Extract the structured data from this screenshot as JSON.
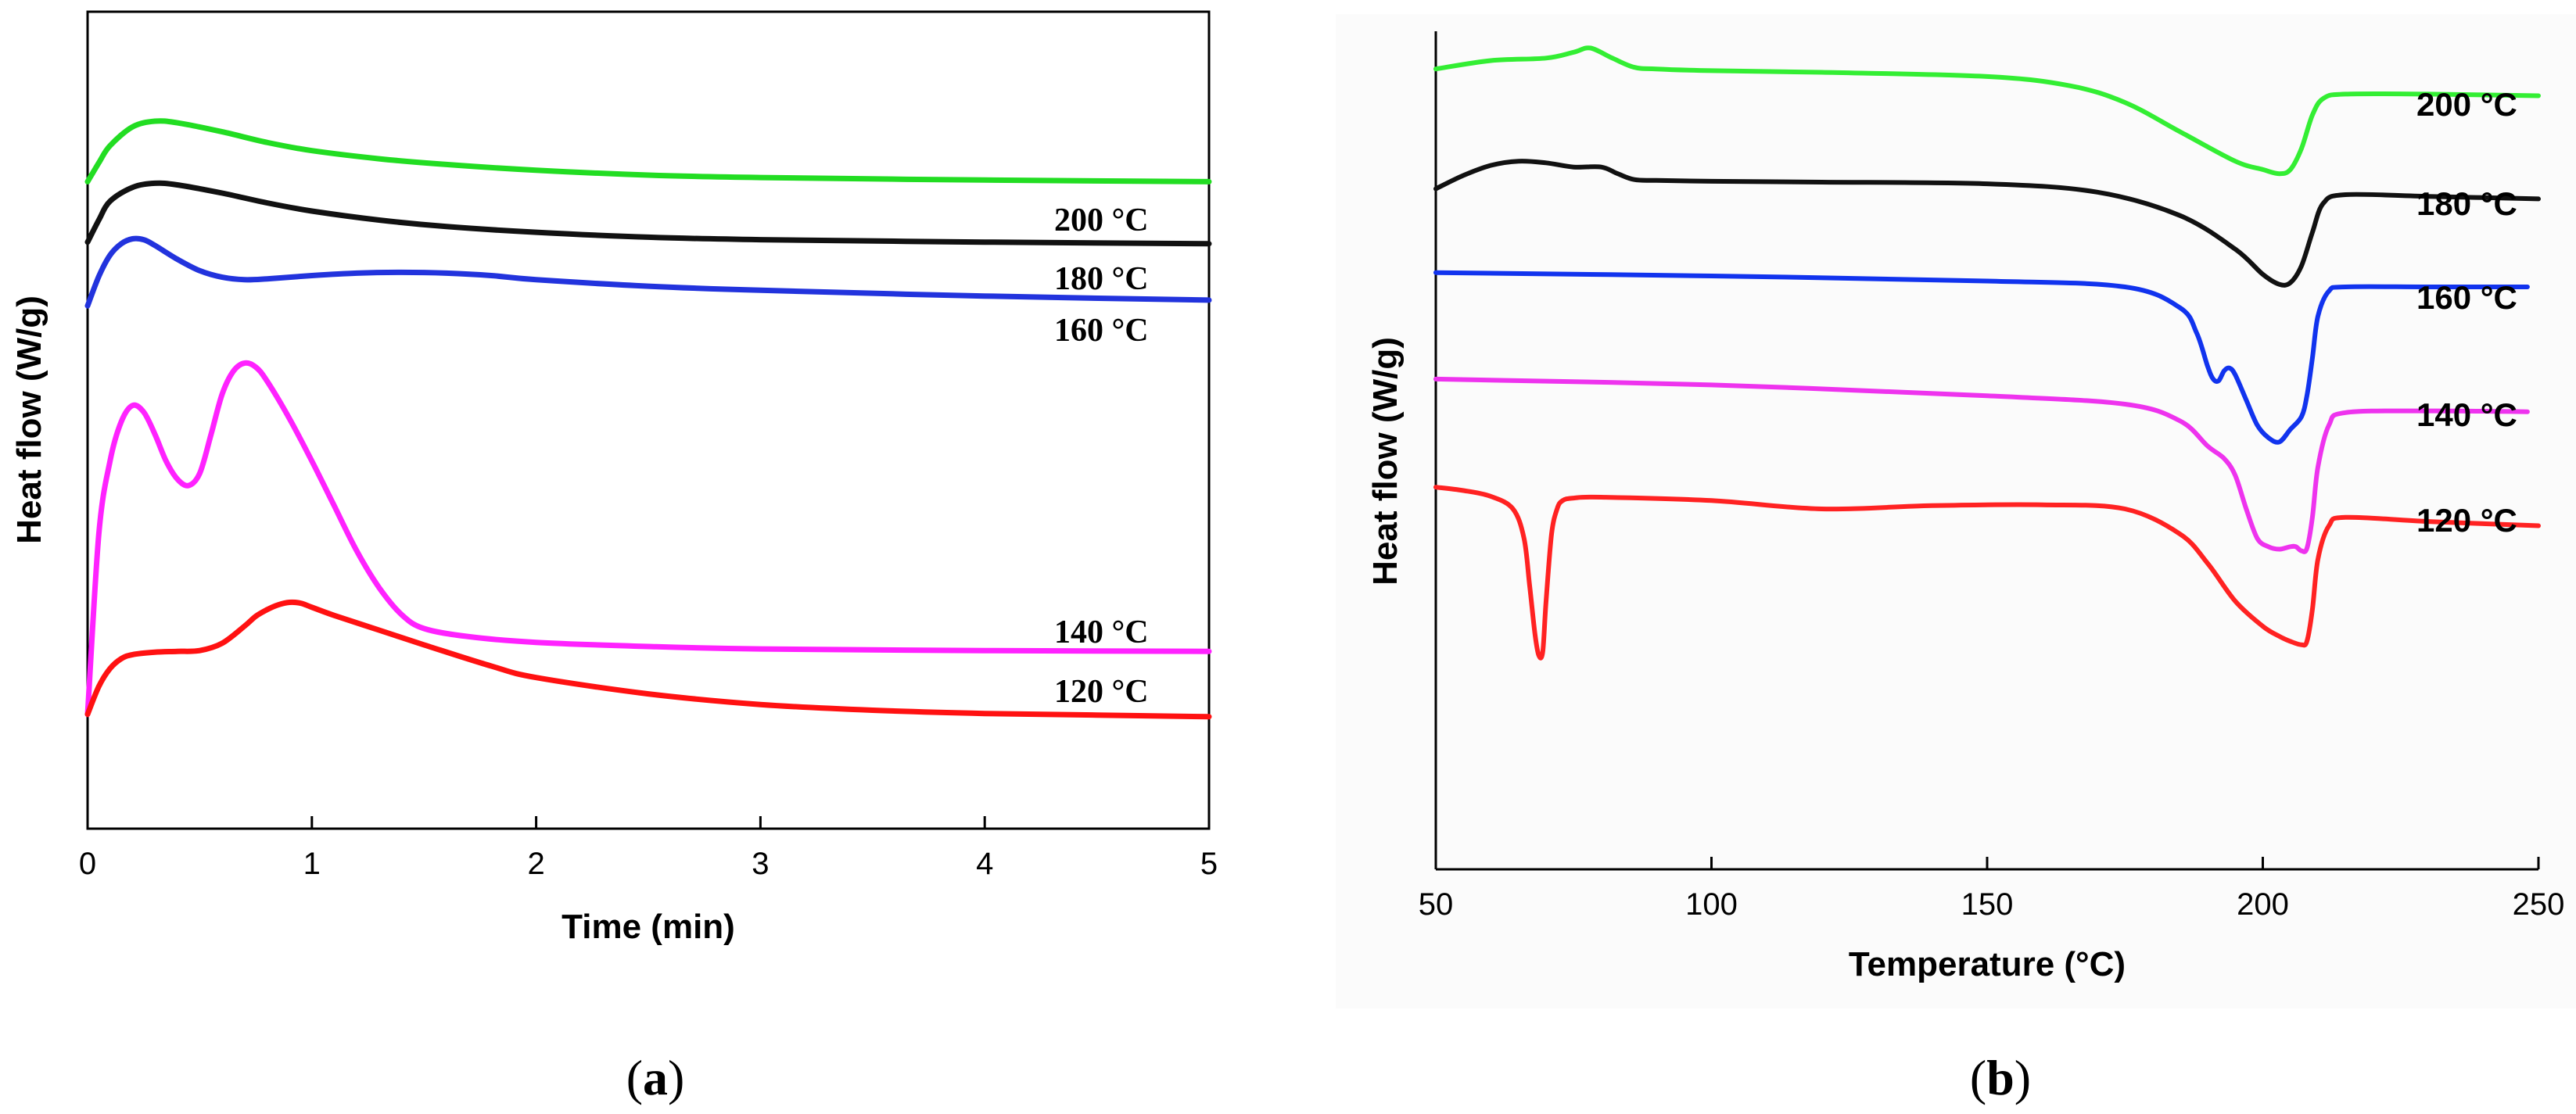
{
  "chart_data": [
    {
      "panel": "a",
      "type": "line",
      "caption_letter": "a",
      "xlabel": "Time (min)",
      "ylabel": "Heat flow (W/g)",
      "xlim": [
        0,
        5
      ],
      "xticks": [
        0,
        1,
        2,
        3,
        4,
        5
      ],
      "yticks_shown": false,
      "y_units": "relative (offset curves)",
      "ylim": [
        0,
        1
      ],
      "series": [
        {
          "name": "200 °C",
          "color": "#22dd22",
          "x": [
            0,
            0.05,
            0.1,
            0.2,
            0.3,
            0.4,
            0.6,
            0.8,
            1.0,
            1.3,
            1.6,
            2.0,
            2.5,
            3.0,
            4.0,
            5.0
          ],
          "y": [
            0.792,
            0.815,
            0.836,
            0.859,
            0.866,
            0.864,
            0.853,
            0.84,
            0.83,
            0.82,
            0.813,
            0.806,
            0.8,
            0.797,
            0.794,
            0.792
          ]
        },
        {
          "name": "180 °C",
          "color": "#111111",
          "x": [
            0,
            0.05,
            0.1,
            0.2,
            0.3,
            0.4,
            0.6,
            0.8,
            1.0,
            1.3,
            1.6,
            2.0,
            2.5,
            3.0,
            4.0,
            5.0
          ],
          "y": [
            0.718,
            0.745,
            0.768,
            0.785,
            0.79,
            0.788,
            0.778,
            0.766,
            0.756,
            0.745,
            0.737,
            0.73,
            0.724,
            0.721,
            0.718,
            0.716
          ]
        },
        {
          "name": "160 °C",
          "color": "#2233dd",
          "x": [
            0,
            0.05,
            0.1,
            0.15,
            0.2,
            0.25,
            0.3,
            0.4,
            0.5,
            0.6,
            0.7,
            0.8,
            1.0,
            1.2,
            1.4,
            1.6,
            1.8,
            2.0,
            2.5,
            3.0,
            4.0,
            5.0
          ],
          "y": [
            0.64,
            0.676,
            0.702,
            0.716,
            0.722,
            0.721,
            0.714,
            0.697,
            0.683,
            0.675,
            0.672,
            0.673,
            0.677,
            0.68,
            0.681,
            0.68,
            0.677,
            0.672,
            0.664,
            0.659,
            0.652,
            0.647
          ]
        },
        {
          "name": "140 °C",
          "color": "#ff22ff",
          "x": [
            0,
            0.05,
            0.1,
            0.15,
            0.2,
            0.25,
            0.3,
            0.35,
            0.4,
            0.45,
            0.5,
            0.55,
            0.6,
            0.65,
            0.7,
            0.75,
            0.8,
            0.9,
            1.0,
            1.1,
            1.2,
            1.3,
            1.4,
            1.5,
            1.7,
            2.0,
            2.5,
            3.0,
            4.0,
            5.0
          ],
          "y": [
            0.14,
            0.36,
            0.45,
            0.498,
            0.518,
            0.51,
            0.483,
            0.45,
            0.428,
            0.42,
            0.435,
            0.482,
            0.532,
            0.56,
            0.57,
            0.565,
            0.548,
            0.502,
            0.45,
            0.395,
            0.34,
            0.295,
            0.262,
            0.245,
            0.235,
            0.228,
            0.223,
            0.22,
            0.218,
            0.217
          ]
        },
        {
          "name": "120 °C",
          "color": "#ff1111",
          "x": [
            0,
            0.05,
            0.1,
            0.15,
            0.2,
            0.3,
            0.4,
            0.5,
            0.6,
            0.7,
            0.75,
            0.8,
            0.85,
            0.9,
            0.95,
            1.0,
            1.1,
            1.3,
            1.5,
            1.8,
            2.0,
            2.5,
            3.0,
            3.5,
            4.0,
            4.5,
            5.0
          ],
          "y": [
            0.14,
            0.174,
            0.196,
            0.208,
            0.213,
            0.216,
            0.217,
            0.218,
            0.227,
            0.248,
            0.26,
            0.268,
            0.274,
            0.277,
            0.276,
            0.271,
            0.261,
            0.243,
            0.225,
            0.199,
            0.185,
            0.165,
            0.152,
            0.145,
            0.141,
            0.139,
            0.137
          ]
        }
      ],
      "curve_labels": [
        "200 °C",
        "180 °C",
        "160 °C",
        "140 °C",
        "120 °C"
      ]
    },
    {
      "panel": "b",
      "type": "line",
      "caption_letter": "b",
      "xlabel": "Temperature (°C)",
      "ylabel": "Heat flow (W/g)",
      "xlim": [
        50,
        250
      ],
      "xticks": [
        50,
        100,
        150,
        200,
        250
      ],
      "yticks_shown": false,
      "y_units": "relative (offset curves)",
      "ylim": [
        0,
        1
      ],
      "series": [
        {
          "name": "200 °C",
          "color": "#33ee33",
          "x": [
            50,
            60,
            70,
            75,
            78,
            82,
            86,
            90,
            100,
            120,
            150,
            165,
            175,
            185,
            195,
            200,
            203,
            205,
            207,
            209,
            211,
            215,
            230,
            250
          ],
          "y": [
            0.955,
            0.965,
            0.968,
            0.975,
            0.98,
            0.968,
            0.957,
            0.955,
            0.953,
            0.951,
            0.946,
            0.935,
            0.915,
            0.88,
            0.845,
            0.835,
            0.83,
            0.835,
            0.86,
            0.9,
            0.92,
            0.925,
            0.925,
            0.923
          ]
        },
        {
          "name": "180 °C",
          "color": "#111111",
          "x": [
            50,
            55,
            60,
            65,
            70,
            75,
            80,
            83,
            86,
            90,
            100,
            120,
            150,
            170,
            185,
            195,
            200,
            203,
            205,
            207,
            209,
            211,
            215,
            230,
            250
          ],
          "y": [
            0.812,
            0.828,
            0.84,
            0.845,
            0.843,
            0.838,
            0.838,
            0.83,
            0.823,
            0.822,
            0.821,
            0.82,
            0.818,
            0.808,
            0.78,
            0.74,
            0.71,
            0.698,
            0.7,
            0.72,
            0.76,
            0.795,
            0.805,
            0.803,
            0.8
          ]
        },
        {
          "name": "160 °C",
          "color": "#1133ee",
          "x": [
            50,
            100,
            150,
            175,
            185,
            188,
            190,
            191,
            192,
            193,
            194,
            195,
            197,
            199,
            201,
            203,
            205,
            207,
            208,
            209,
            210,
            212,
            215,
            230,
            248
          ],
          "y": [
            0.712,
            0.708,
            0.702,
            0.695,
            0.67,
            0.64,
            0.6,
            0.585,
            0.583,
            0.595,
            0.598,
            0.59,
            0.56,
            0.53,
            0.515,
            0.51,
            0.525,
            0.54,
            0.565,
            0.61,
            0.66,
            0.69,
            0.695,
            0.695,
            0.695
          ]
        },
        {
          "name": "140 °C",
          "color": "#ee33ee",
          "x": [
            50,
            100,
            150,
            175,
            185,
            190,
            193,
            195,
            197,
            199,
            201,
            203,
            205,
            206,
            207,
            208,
            209,
            210,
            212,
            215,
            230,
            248
          ],
          "y": [
            0.585,
            0.578,
            0.565,
            0.555,
            0.535,
            0.505,
            0.49,
            0.47,
            0.43,
            0.395,
            0.385,
            0.382,
            0.385,
            0.385,
            0.38,
            0.383,
            0.42,
            0.48,
            0.53,
            0.545,
            0.547,
            0.546
          ]
        },
        {
          "name": "120 °C",
          "color": "#ff2222",
          "x": [
            50,
            55,
            60,
            64,
            66,
            67,
            68,
            68.7,
            69.4,
            70,
            71,
            72,
            73,
            75,
            80,
            100,
            120,
            140,
            160,
            175,
            185,
            190,
            195,
            200,
            203,
            205,
            207,
            208,
            209,
            210,
            212,
            215,
            230,
            250
          ],
          "y": [
            0.456,
            0.452,
            0.445,
            0.43,
            0.395,
            0.34,
            0.28,
            0.255,
            0.26,
            0.32,
            0.4,
            0.43,
            0.44,
            0.443,
            0.444,
            0.44,
            0.43,
            0.434,
            0.435,
            0.43,
            0.4,
            0.365,
            0.32,
            0.29,
            0.278,
            0.272,
            0.268,
            0.272,
            0.31,
            0.37,
            0.41,
            0.42,
            0.415,
            0.41
          ]
        }
      ],
      "curve_labels": [
        "200 °C",
        "180 °C",
        "160 °C",
        "140 °C",
        "120 °C"
      ]
    }
  ]
}
